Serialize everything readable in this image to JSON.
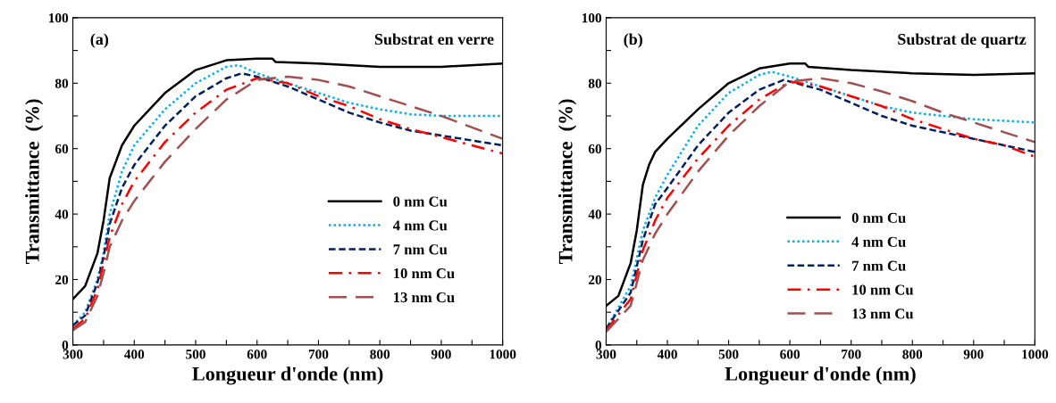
{
  "chart_data": [
    {
      "type": "line",
      "xlabel": "Longueur d'onde (nm)",
      "ylabel": "Transmittance  (%)",
      "annotations": [
        "(a)",
        "Substrat en verre"
      ],
      "xlim": [
        300,
        1000
      ],
      "xticks": [
        300,
        {
          "value": 350,
          "label": null
        },
        400,
        {
          "value": 450,
          "label": null
        },
        500,
        {
          "value": 550,
          "label": null
        },
        600,
        {
          "value": 650,
          "label": null
        },
        700,
        {
          "value": 750,
          "label": null
        },
        800,
        {
          "value": 850,
          "label": null
        },
        900,
        {
          "value": 950,
          "label": null
        },
        1000
      ],
      "ylim": [
        0,
        100
      ],
      "yticks": [
        0,
        {
          "value": 10,
          "label": null
        },
        20,
        {
          "value": 30,
          "label": null
        },
        40,
        {
          "value": 50,
          "label": null
        },
        60,
        {
          "value": 70,
          "label": null
        },
        80,
        {
          "value": 90,
          "label": null
        },
        100
      ],
      "grid": false,
      "legend": "bottom right",
      "series": [
        {
          "name": "0 nm Cu",
          "color": "#000000",
          "line_style": "solid",
          "x": [
            300,
            320,
            340,
            350,
            360,
            370,
            380,
            400,
            425,
            450,
            500,
            550,
            600,
            625,
            630,
            700,
            800,
            900,
            1000
          ],
          "values": [
            14,
            18,
            28,
            38,
            51,
            56,
            61,
            67,
            72,
            77,
            84,
            87,
            87.5,
            87.5,
            86.5,
            86,
            85,
            85,
            86
          ]
        },
        {
          "name": "4 nm Cu",
          "color": "#00b0f0",
          "line_style": "dotted",
          "x": [
            300,
            320,
            340,
            350,
            360,
            380,
            400,
            450,
            500,
            550,
            570,
            600,
            650,
            700,
            750,
            800,
            850,
            900,
            1000
          ],
          "values": [
            6,
            10,
            20,
            28,
            40,
            53,
            61,
            72,
            80,
            85,
            85.5,
            83,
            80,
            77,
            74,
            72,
            70.5,
            70,
            70
          ]
        },
        {
          "name": "7 nm Cu",
          "color": "#002060",
          "line_style": "dashed",
          "x": [
            300,
            320,
            340,
            350,
            360,
            380,
            400,
            450,
            500,
            550,
            575,
            600,
            650,
            700,
            750,
            800,
            850,
            900,
            950,
            1000
          ],
          "values": [
            6,
            9,
            19,
            27,
            37,
            48,
            55,
            67,
            76,
            81.5,
            83,
            82,
            79,
            75,
            71,
            68,
            65.5,
            64,
            62.5,
            61
          ]
        },
        {
          "name": "10 nm Cu",
          "color": "#ff0000",
          "line_style": "dashdot",
          "x": [
            300,
            320,
            340,
            350,
            360,
            380,
            400,
            450,
            500,
            550,
            600,
            650,
            700,
            750,
            800,
            850,
            900,
            950,
            1000
          ],
          "values": [
            5,
            8,
            17,
            25,
            33,
            43,
            50,
            62,
            71,
            78,
            81.5,
            80,
            76,
            73,
            69,
            66,
            63.5,
            61,
            58.5
          ]
        },
        {
          "name": "13 nm Cu",
          "color": "#a0504e",
          "line_style": "longdash",
          "x": [
            300,
            320,
            340,
            350,
            360,
            380,
            400,
            450,
            500,
            550,
            600,
            650,
            700,
            750,
            800,
            850,
            900,
            950,
            1000
          ],
          "values": [
            4.5,
            7,
            15,
            22,
            30,
            38,
            44,
            56,
            66,
            75,
            81,
            82,
            81,
            79,
            76,
            73,
            70,
            66.5,
            63
          ]
        }
      ]
    },
    {
      "type": "line",
      "xlabel": "Longueur d'onde (nm)",
      "ylabel": "Transmittance  (%)",
      "annotations": [
        "(b)",
        "Substrat de quartz"
      ],
      "xlim": [
        300,
        1000
      ],
      "xticks": [
        300,
        {
          "value": 350,
          "label": null
        },
        400,
        {
          "value": 450,
          "label": null
        },
        500,
        {
          "value": 550,
          "label": null
        },
        600,
        {
          "value": 650,
          "label": null
        },
        700,
        {
          "value": 750,
          "label": null
        },
        800,
        {
          "value": 850,
          "label": null
        },
        900,
        {
          "value": 950,
          "label": null
        },
        1000
      ],
      "ylim": [
        0,
        100
      ],
      "yticks": [
        0,
        {
          "value": 10,
          "label": null
        },
        20,
        {
          "value": 30,
          "label": null
        },
        40,
        {
          "value": 50,
          "label": null
        },
        60,
        {
          "value": 70,
          "label": null
        },
        80,
        {
          "value": 90,
          "label": null
        },
        100
      ],
      "grid": false,
      "legend": "bottom",
      "series": [
        {
          "name": "0 nm Cu",
          "color": "#000000",
          "line_style": "solid",
          "x": [
            300,
            320,
            340,
            350,
            360,
            370,
            380,
            400,
            450,
            500,
            550,
            600,
            625,
            630,
            700,
            800,
            900,
            1000
          ],
          "values": [
            12,
            15,
            25,
            35,
            49,
            55,
            59,
            63,
            72,
            80,
            84.5,
            86,
            86,
            85,
            84,
            83,
            82.5,
            83
          ]
        },
        {
          "name": "4 nm Cu",
          "color": "#00b0f0",
          "line_style": "dotted",
          "x": [
            300,
            340,
            360,
            380,
            400,
            450,
            500,
            550,
            570,
            600,
            650,
            700,
            750,
            800,
            900,
            1000
          ],
          "values": [
            5,
            18,
            35,
            45,
            52,
            67,
            77,
            82.5,
            83.5,
            82,
            79,
            76,
            73,
            71,
            69,
            68
          ]
        },
        {
          "name": "7 nm Cu",
          "color": "#002060",
          "line_style": "dashed",
          "x": [
            300,
            340,
            360,
            380,
            400,
            450,
            500,
            550,
            590,
            600,
            650,
            700,
            750,
            800,
            850,
            900,
            1000
          ],
          "values": [
            5,
            16,
            32,
            43,
            48,
            61,
            71,
            78,
            81,
            80.5,
            78,
            74,
            70,
            67,
            65,
            63,
            59
          ]
        },
        {
          "name": "10 nm Cu",
          "color": "#ff0000",
          "line_style": "dashdot",
          "x": [
            300,
            340,
            360,
            380,
            400,
            450,
            500,
            550,
            600,
            650,
            700,
            750,
            800,
            850,
            900,
            950,
            1000
          ],
          "values": [
            4.5,
            14,
            29,
            38,
            45,
            57,
            67,
            75,
            80.5,
            79,
            76,
            73,
            69,
            66,
            63,
            61,
            57.5
          ]
        },
        {
          "name": "13 nm Cu",
          "color": "#a0504e",
          "line_style": "longdash",
          "x": [
            300,
            340,
            360,
            380,
            400,
            450,
            500,
            550,
            600,
            650,
            700,
            750,
            800,
            850,
            900,
            950,
            1000
          ],
          "values": [
            4,
            12,
            26,
            34,
            40,
            53,
            64,
            73,
            80.5,
            81.5,
            80,
            77.5,
            74.5,
            71,
            68,
            65,
            62
          ]
        }
      ]
    }
  ]
}
